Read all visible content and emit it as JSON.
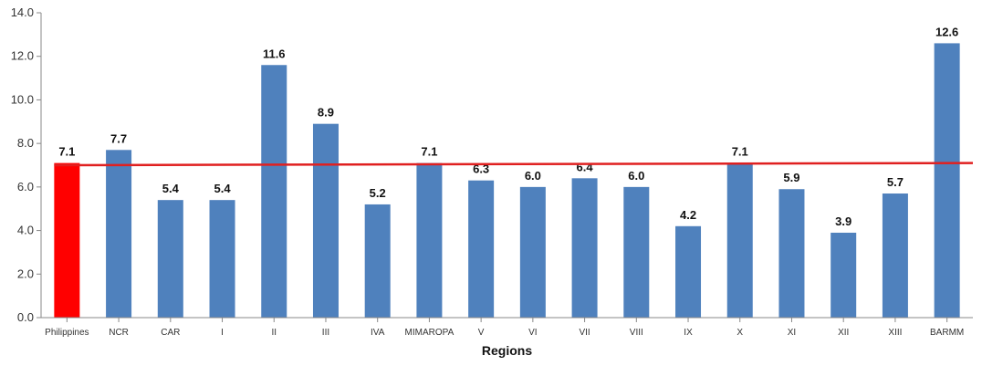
{
  "chart_data": {
    "type": "bar",
    "title": "",
    "xlabel": "Regions",
    "ylabel": "",
    "ylim": [
      0,
      14
    ],
    "yticks": [
      0,
      2,
      4,
      6,
      8,
      10,
      12,
      14
    ],
    "ytick_labels": [
      "0.0",
      "2.0",
      "4.0",
      "6.0",
      "8.0",
      "10.0",
      "12.0",
      "14.0"
    ],
    "grid": false,
    "legend": "none",
    "categories": [
      "Philippines",
      "NCR",
      "CAR",
      "I",
      "II",
      "III",
      "IVA",
      "MIMAROPA",
      "V",
      "VI",
      "VII",
      "VIII",
      "IX",
      "X",
      "XI",
      "XII",
      "XIII",
      "BARMM"
    ],
    "values": [
      7.1,
      7.7,
      5.4,
      5.4,
      11.6,
      8.9,
      5.2,
      7.1,
      6.3,
      6.0,
      6.4,
      6.0,
      4.2,
      7.1,
      5.9,
      3.9,
      5.7,
      12.6
    ],
    "data_labels": [
      "7.1",
      "7.7",
      "5.4",
      "5.4",
      "11.6",
      "8.9",
      "5.2",
      "7.1",
      "6.3",
      "6.0",
      "6.4",
      "6.0",
      "4.2",
      "7.1",
      "5.9",
      "3.9",
      "5.7",
      "12.6"
    ],
    "highlight_index": 0,
    "reference_line": {
      "start_value": 7.0,
      "end_value": 7.1
    },
    "colors": {
      "bar": "#4F81BD",
      "highlight": "#FF0000",
      "reference_line": "#E02020",
      "axis": "#888888"
    }
  }
}
